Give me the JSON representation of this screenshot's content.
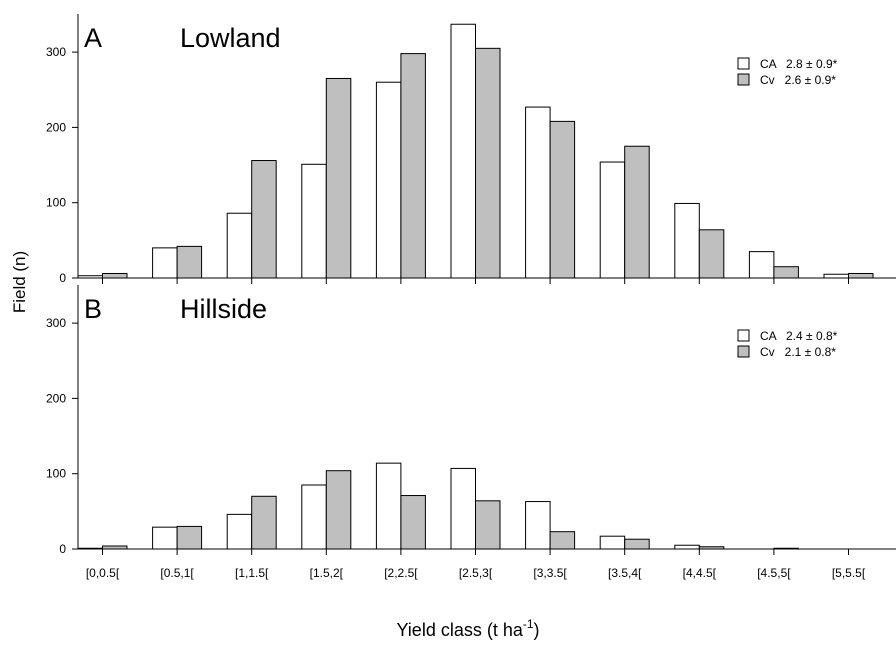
{
  "chart_data": [
    {
      "type": "bar",
      "panel_label": "A",
      "title": "Lowland",
      "categories": [
        "[0,0.5[",
        "[0.5,1[",
        "[1,1.5[",
        "[1.5,2[",
        "[2,2.5[",
        "[2.5,3[",
        "[3,3.5[",
        "[3.5,4[",
        "[4,4.5[",
        "[4.5,5[",
        "[5,5.5["
      ],
      "series": [
        {
          "name": "CA",
          "legend_text": "CA   2.8 ± 0.9*",
          "color": "#ffffff",
          "values": [
            3,
            40,
            86,
            151,
            260,
            337,
            227,
            154,
            99,
            35,
            5
          ]
        },
        {
          "name": "Cv",
          "legend_text": "Cv   2.6 ± 0.9*",
          "color": "#bfbfbf",
          "values": [
            6,
            42,
            156,
            265,
            298,
            305,
            208,
            175,
            64,
            15,
            6
          ]
        }
      ],
      "ylim": [
        0,
        350
      ],
      "yticks": [
        0,
        100,
        200,
        300
      ],
      "legend_position": "top-right"
    },
    {
      "type": "bar",
      "panel_label": "B",
      "title": "Hillside",
      "categories": [
        "[0,0.5[",
        "[0.5,1[",
        "[1,1.5[",
        "[1.5,2[",
        "[2,2.5[",
        "[2.5,3[",
        "[3,3.5[",
        "[3.5,4[",
        "[4,4.5[",
        "[4.5,5[",
        "[5,5.5["
      ],
      "series": [
        {
          "name": "CA",
          "legend_text": "CA   2.4 ± 0.8*",
          "color": "#ffffff",
          "values": [
            1,
            29,
            46,
            85,
            114,
            107,
            63,
            17,
            5,
            0,
            0
          ]
        },
        {
          "name": "Cv",
          "legend_text": "Cv   2.1 ± 0.8*",
          "color": "#bfbfbf",
          "values": [
            4,
            30,
            70,
            104,
            71,
            64,
            23,
            13,
            3,
            1,
            0
          ]
        }
      ],
      "ylim": [
        0,
        350
      ],
      "yticks": [
        0,
        100,
        200,
        300
      ],
      "legend_position": "top-right"
    }
  ],
  "shared_axes": {
    "ylabel": "Field (n)",
    "xlabel_main": "Yield class (t ha",
    "xlabel_sup": "-1",
    "xlabel_close": ")"
  }
}
